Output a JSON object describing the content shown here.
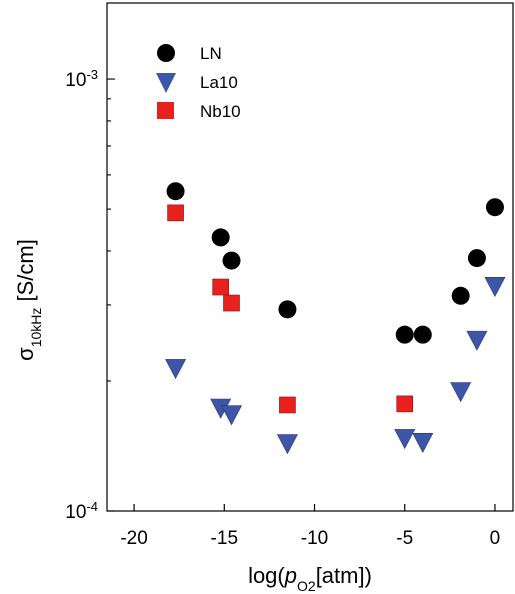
{
  "chart_data": {
    "type": "scatter",
    "xlabel": {
      "prefix": "log(",
      "italic": "p",
      "sub": "O2",
      "suffix": "[atm])"
    },
    "ylabel": {
      "main": "σ",
      "sub": "10kHz",
      "suffix": " [S/cm]"
    },
    "xlim": [
      -21.5,
      1
    ],
    "ylim": [
      0.0001,
      0.0015
    ],
    "yscale": "log",
    "x_ticks": [
      -20,
      -15,
      -10,
      -5,
      0
    ],
    "x_tick_labels": [
      "-20",
      "-15",
      "-10",
      "-5",
      "0"
    ],
    "y_tick_labels": [
      {
        "value": 0.001,
        "base": "10",
        "exp": "-3"
      },
      {
        "value": 0.0001,
        "base": "10",
        "exp": "-4"
      }
    ],
    "grid": false,
    "legend_position": "top-left",
    "series": [
      {
        "name": "LN",
        "marker": "circle",
        "color": "#000000",
        "x": [
          -17.7,
          -15.2,
          -14.6,
          -11.5,
          -5.0,
          -4.0,
          -1.9,
          -1.0,
          0.0
        ],
        "y": [
          0.00055,
          0.00043,
          0.00038,
          0.000293,
          0.000256,
          0.000256,
          0.000315,
          0.000385,
          0.000505
        ]
      },
      {
        "name": "La10",
        "marker": "triangle-down",
        "color": "#3d56a8",
        "x": [
          -17.7,
          -15.2,
          -14.6,
          -11.5,
          -5.0,
          -4.0,
          -1.9,
          -1.0,
          0.0
        ],
        "y": [
          0.000215,
          0.000174,
          0.000168,
          0.000144,
          0.000148,
          0.000145,
          0.00019,
          0.00025,
          0.000333
        ]
      },
      {
        "name": "Nb10",
        "marker": "square",
        "color": "#e8201e",
        "x": [
          -17.7,
          -15.2,
          -14.6,
          -11.5,
          -5.0
        ],
        "y": [
          0.00049,
          0.00033,
          0.000303,
          0.000176,
          0.000177
        ]
      }
    ]
  }
}
